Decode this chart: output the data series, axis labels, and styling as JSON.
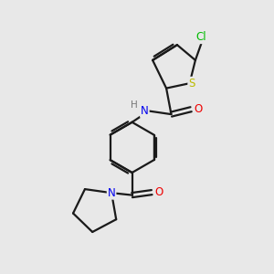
{
  "background_color": "#e8e8e8",
  "bond_color": "#1a1a1a",
  "atom_colors": {
    "Cl": "#00bb00",
    "S": "#bbbb00",
    "N": "#0000ee",
    "O": "#ee0000",
    "H": "#777777",
    "C": "#1a1a1a"
  },
  "figsize": [
    3.0,
    3.0
  ],
  "dpi": 100
}
